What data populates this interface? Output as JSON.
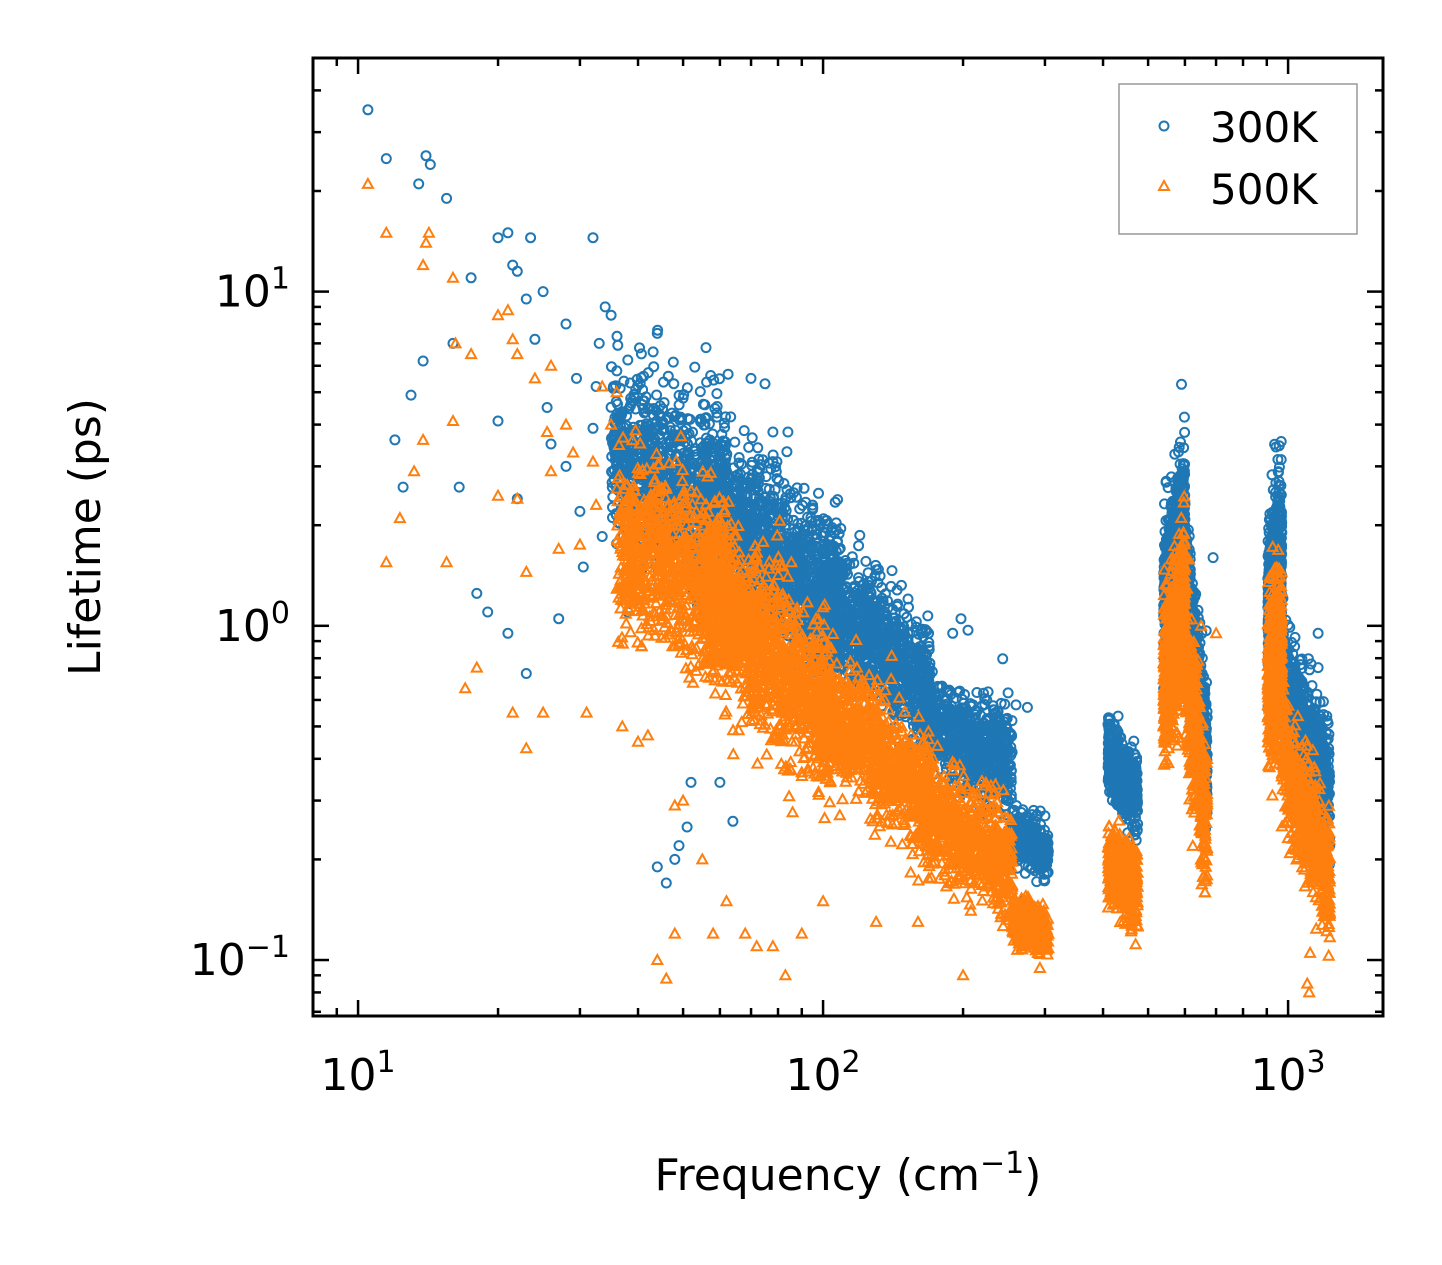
{
  "chart_data": {
    "type": "scatter",
    "xscale": "log",
    "yscale": "log",
    "xlim": [
      8,
      1600
    ],
    "ylim": [
      0.068,
      50
    ],
    "xlabel": "Frequency (cm",
    "xlabel_sup": "−1",
    "xlabel_end": ")",
    "ylabel": "Lifetime (ps)",
    "xticks": [
      {
        "value": 10,
        "base": "10",
        "exp": "1"
      },
      {
        "value": 100,
        "base": "10",
        "exp": "2"
      },
      {
        "value": 1000,
        "base": "10",
        "exp": "3"
      }
    ],
    "yticks": [
      {
        "value": 0.1,
        "base": "10",
        "exp": "−1"
      },
      {
        "value": 1,
        "base": "10",
        "exp": "0"
      },
      {
        "value": 10,
        "base": "10",
        "exp": "1"
      }
    ],
    "legend_position": "top-right",
    "series": [
      {
        "name": "300K",
        "marker": "circle",
        "color": "#1f77b4",
        "points": [
          [
            10.5,
            35
          ],
          [
            11.5,
            25
          ],
          [
            13.5,
            21
          ],
          [
            14,
            25.5
          ],
          [
            14.3,
            24
          ],
          [
            15.5,
            19
          ],
          [
            17.5,
            11
          ],
          [
            20,
            14.5
          ],
          [
            21,
            15
          ],
          [
            21.5,
            12
          ],
          [
            22,
            11.5
          ],
          [
            23,
            9.5
          ],
          [
            23.5,
            14.5
          ],
          [
            25,
            10
          ],
          [
            28,
            8
          ],
          [
            29.5,
            5.5
          ],
          [
            32,
            14.5
          ],
          [
            33,
            7
          ],
          [
            34,
            9
          ],
          [
            35,
            8.5
          ],
          [
            12,
            3.6
          ],
          [
            12.5,
            2.6
          ],
          [
            13,
            4.9
          ],
          [
            13.8,
            6.2
          ],
          [
            16,
            7
          ],
          [
            16.5,
            2.6
          ],
          [
            18,
            1.25
          ],
          [
            19,
            1.1
          ],
          [
            20,
            4.1
          ],
          [
            21,
            0.95
          ],
          [
            22,
            2.4
          ],
          [
            23,
            0.72
          ],
          [
            24,
            7.2
          ],
          [
            25.5,
            4.5
          ],
          [
            26,
            3.5
          ],
          [
            27,
            1.05
          ],
          [
            28,
            3
          ],
          [
            30,
            2.2
          ],
          [
            30.5,
            1.5
          ],
          [
            32,
            3.9
          ],
          [
            32.5,
            5.2
          ],
          [
            33.5,
            1.85
          ],
          [
            38,
            1.1
          ],
          [
            40,
            3.2
          ],
          [
            44,
            7.5
          ],
          [
            48,
            2.9
          ],
          [
            50,
            4.8
          ],
          [
            56,
            6.8
          ],
          [
            62,
            2.9
          ],
          [
            70,
            5.5
          ],
          [
            75,
            5.3
          ],
          [
            78,
            3.8
          ],
          [
            84,
            3.8
          ],
          [
            44,
            0.19
          ],
          [
            46,
            0.17
          ],
          [
            48,
            0.2
          ],
          [
            51,
            0.25
          ],
          [
            49,
            0.22
          ],
          [
            52,
            0.34
          ],
          [
            60,
            0.34
          ],
          [
            64,
            0.26
          ],
          [
            190,
            0.95
          ],
          [
            198,
            1.05
          ],
          [
            205,
            0.97
          ],
          [
            205,
            0.5
          ],
          [
            210,
            0.58
          ],
          [
            225,
            0.6
          ],
          [
            235,
            0.55
          ],
          [
            250,
            0.63
          ],
          [
            260,
            0.58
          ],
          [
            275,
            0.57
          ],
          [
            286,
            0.26
          ],
          [
            300,
            0.27
          ],
          [
            690,
            1.6
          ],
          [
            1160,
            0.95
          ],
          [
            1160,
            0.75
          ],
          [
            1200,
            0.4
          ],
          [
            1220,
            0.33
          ]
        ],
        "clusters": [
          {
            "x": [
              35,
              62
            ],
            "logy_center_start": 0.52,
            "logy_center_end": 0.33,
            "spread": 0.24,
            "count": 900
          },
          {
            "x": [
              55,
              110
            ],
            "logy_center_start": 0.38,
            "logy_center_end": 0.05,
            "spread": 0.22,
            "count": 1300
          },
          {
            "x": [
              100,
              170
            ],
            "logy_center_start": 0.08,
            "logy_center_end": -0.18,
            "spread": 0.16,
            "count": 900
          },
          {
            "x": [
              165,
              255
            ],
            "logy_center_start": -0.28,
            "logy_center_end": -0.42,
            "spread": 0.13,
            "count": 700
          },
          {
            "x": [
              255,
              305
            ],
            "logy_center_start": -0.62,
            "logy_center_end": -0.68,
            "spread": 0.07,
            "count": 300
          },
          {
            "x": [
              410,
              475
            ],
            "logy_center_start": -0.38,
            "logy_center_end": -0.52,
            "spread": 0.1,
            "count": 500
          },
          {
            "x": [
              540,
              600
            ],
            "logy_center_start": 0.05,
            "logy_center_end": 0.3,
            "spread": 0.22,
            "count": 700
          },
          {
            "x": [
              600,
              670
            ],
            "logy_center_start": 0.1,
            "logy_center_end": -0.4,
            "spread": 0.2,
            "count": 500
          },
          {
            "x": [
              905,
              970
            ],
            "logy_center_start": 0.05,
            "logy_center_end": 0.2,
            "spread": 0.24,
            "count": 600
          },
          {
            "x": [
              970,
              1230
            ],
            "logy_center_start": -0.15,
            "logy_center_end": -0.5,
            "spread": 0.16,
            "count": 600
          }
        ]
      },
      {
        "name": "500K",
        "marker": "triangle",
        "color": "#ff7f0e",
        "points": [
          [
            10.5,
            21
          ],
          [
            11.5,
            15
          ],
          [
            12.3,
            2.1
          ],
          [
            11.5,
            1.55
          ],
          [
            13.2,
            2.9
          ],
          [
            13.8,
            12
          ],
          [
            14,
            14
          ],
          [
            14.2,
            15
          ],
          [
            13.8,
            3.6
          ],
          [
            15.5,
            1.55
          ],
          [
            16,
            4.1
          ],
          [
            16.2,
            7
          ],
          [
            16,
            11
          ],
          [
            17,
            0.65
          ],
          [
            17.5,
            6.5
          ],
          [
            18,
            0.75
          ],
          [
            20,
            8.5
          ],
          [
            20,
            2.45
          ],
          [
            21,
            8.8
          ],
          [
            21.5,
            7.2
          ],
          [
            21.5,
            0.55
          ],
          [
            22,
            6.5
          ],
          [
            22,
            2.4
          ],
          [
            23,
            0.43
          ],
          [
            23,
            1.45
          ],
          [
            24,
            5.5
          ],
          [
            25.5,
            3.8
          ],
          [
            25,
            0.55
          ],
          [
            26,
            6
          ],
          [
            26,
            2.9
          ],
          [
            27,
            1.7
          ],
          [
            28,
            4
          ],
          [
            29,
            3.3
          ],
          [
            30,
            1.75
          ],
          [
            31,
            0.55
          ],
          [
            32,
            3.1
          ],
          [
            32.5,
            2.3
          ],
          [
            33.5,
            5.2
          ],
          [
            35,
            4
          ],
          [
            36,
            5
          ],
          [
            37,
            0.5
          ],
          [
            40,
            0.45
          ],
          [
            42,
            0.47
          ],
          [
            44,
            0.1
          ],
          [
            46,
            0.088
          ],
          [
            48,
            0.29
          ],
          [
            50,
            0.3
          ],
          [
            48,
            0.12
          ],
          [
            55,
            0.2
          ],
          [
            58,
            0.12
          ],
          [
            62,
            0.15
          ],
          [
            68,
            0.12
          ],
          [
            72,
            0.11
          ],
          [
            78,
            0.11
          ],
          [
            83,
            0.09
          ],
          [
            90,
            0.12
          ],
          [
            100,
            0.15
          ],
          [
            130,
            0.13
          ],
          [
            160,
            0.13
          ],
          [
            200,
            0.09
          ],
          [
            1110,
            0.08
          ],
          [
            1100,
            0.085
          ],
          [
            1115,
            0.105
          ],
          [
            650,
            1
          ],
          [
            700,
            0.95
          ]
        ],
        "clusters": [
          {
            "x": [
              36,
              62
            ],
            "logy_center_start": 0.26,
            "logy_center_end": 0.1,
            "spread": 0.24,
            "count": 800
          },
          {
            "x": [
              55,
              105
            ],
            "logy_center_start": 0.12,
            "logy_center_end": -0.28,
            "spread": 0.22,
            "count": 1300
          },
          {
            "x": [
              100,
              170
            ],
            "logy_center_start": -0.25,
            "logy_center_end": -0.52,
            "spread": 0.16,
            "count": 900
          },
          {
            "x": [
              165,
              255
            ],
            "logy_center_start": -0.55,
            "logy_center_end": -0.72,
            "spread": 0.14,
            "count": 700
          },
          {
            "x": [
              255,
              305
            ],
            "logy_center_start": -0.88,
            "logy_center_end": -0.92,
            "spread": 0.07,
            "count": 300
          },
          {
            "x": [
              410,
              475
            ],
            "logy_center_start": -0.7,
            "logy_center_end": -0.8,
            "spread": 0.1,
            "count": 450
          },
          {
            "x": [
              540,
              600
            ],
            "logy_center_start": -0.2,
            "logy_center_end": 0.08,
            "spread": 0.22,
            "count": 650
          },
          {
            "x": [
              600,
              670
            ],
            "logy_center_start": -0.1,
            "logy_center_end": -0.62,
            "spread": 0.2,
            "count": 450
          },
          {
            "x": [
              905,
              970
            ],
            "logy_center_start": -0.2,
            "logy_center_end": -0.05,
            "spread": 0.22,
            "count": 550
          },
          {
            "x": [
              970,
              1230
            ],
            "logy_center_start": -0.4,
            "logy_center_end": -0.75,
            "spread": 0.16,
            "count": 550
          }
        ]
      }
    ]
  }
}
